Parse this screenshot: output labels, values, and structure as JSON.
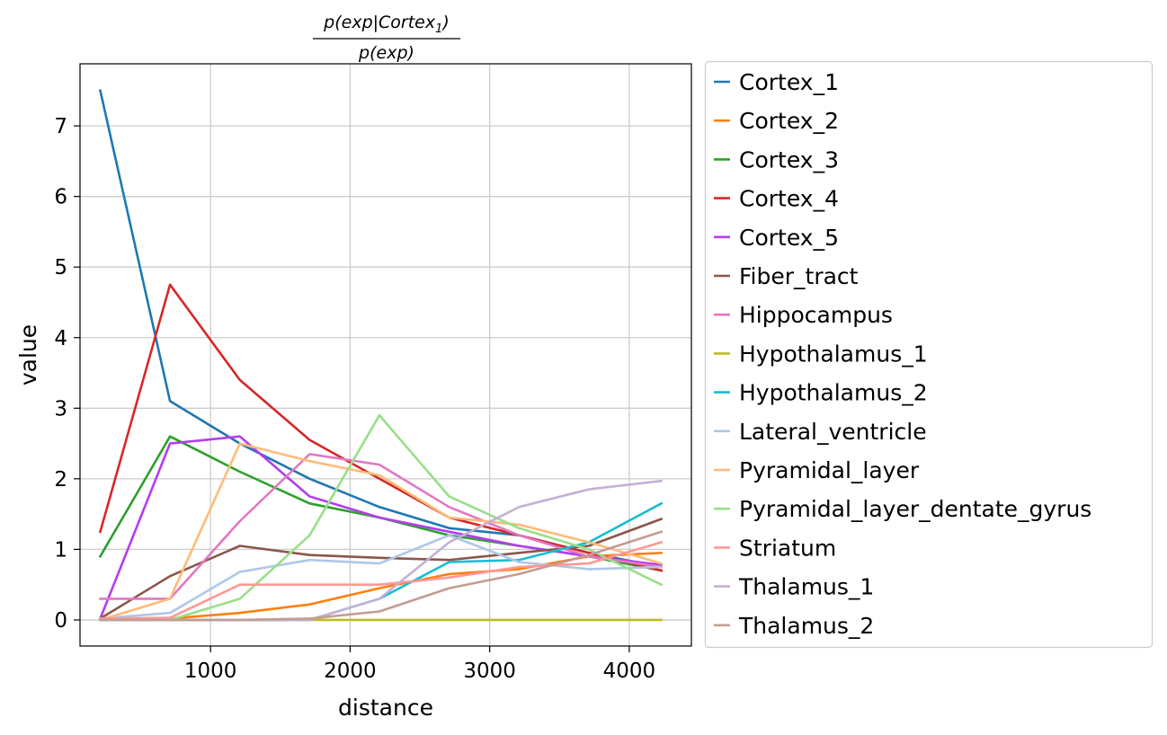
{
  "chart_data": {
    "type": "line",
    "title": {
      "numerator_main": "p(exp|Cortex",
      "numerator_sub": "1",
      "numerator_end": ")",
      "denominator": "p(exp)"
    },
    "xlabel": "distance",
    "ylabel": "value",
    "xlim": [
      65,
      4445
    ],
    "ylim": [
      -0.37,
      7.88
    ],
    "xticks": [
      1000,
      2000,
      3000,
      4000
    ],
    "yticks": [
      0,
      1,
      2,
      3,
      4,
      5,
      6,
      7
    ],
    "grid": true,
    "legend_position": "outside-right",
    "x": [
      210,
      710,
      1210,
      1710,
      2210,
      2710,
      3210,
      3710,
      4230
    ],
    "series": [
      {
        "name": "Cortex_1",
        "color": "#1f77b4",
        "values": [
          7.5,
          3.1,
          2.5,
          2.0,
          1.6,
          1.3,
          1.2,
          0.95,
          0.75
        ]
      },
      {
        "name": "Cortex_2",
        "color": "#ff7f0e",
        "values": [
          0.0,
          0.02,
          0.1,
          0.22,
          0.45,
          0.65,
          0.72,
          0.9,
          0.95
        ]
      },
      {
        "name": "Cortex_3",
        "color": "#2ca02c",
        "values": [
          0.9,
          2.6,
          2.1,
          1.65,
          1.45,
          1.2,
          1.05,
          0.9,
          0.7
        ]
      },
      {
        "name": "Cortex_4",
        "color": "#d62728",
        "values": [
          1.25,
          4.75,
          3.4,
          2.55,
          2.0,
          1.45,
          1.2,
          0.95,
          0.7
        ]
      },
      {
        "name": "Cortex_5",
        "color": "#b43cf0",
        "values": [
          0.02,
          2.5,
          2.6,
          1.75,
          1.45,
          1.25,
          1.05,
          0.9,
          0.78
        ]
      },
      {
        "name": "Fiber_tract",
        "color": "#8c564b",
        "values": [
          0.02,
          0.62,
          1.05,
          0.92,
          0.88,
          0.85,
          0.95,
          1.05,
          1.43
        ]
      },
      {
        "name": "Hippocampus",
        "color": "#e377c2",
        "values": [
          0.3,
          0.3,
          1.4,
          2.35,
          2.2,
          1.6,
          1.2,
          0.9,
          0.75
        ]
      },
      {
        "name": "Hypothalamus_1",
        "color": "#bcbd22",
        "values": [
          0.0,
          0.0,
          0.0,
          0.0,
          0.0,
          0.0,
          0.0,
          0.0,
          0.0
        ]
      },
      {
        "name": "Hypothalamus_2",
        "color": "#17becf",
        "values": [
          0.0,
          0.0,
          0.0,
          0.0,
          0.3,
          0.82,
          0.85,
          1.1,
          1.65
        ]
      },
      {
        "name": "Lateral_ventricle",
        "color": "#aec7e8",
        "values": [
          0.02,
          0.1,
          0.68,
          0.85,
          0.8,
          1.2,
          0.82,
          0.72,
          0.75
        ]
      },
      {
        "name": "Pyramidal_layer",
        "color": "#ffbb78",
        "values": [
          0.0,
          0.3,
          2.5,
          2.25,
          2.05,
          1.45,
          1.35,
          1.1,
          0.8
        ]
      },
      {
        "name": "Pyramidal_layer_dentate_gyrus",
        "color": "#98df8a",
        "values": [
          0.0,
          0.0,
          0.3,
          1.2,
          2.9,
          1.75,
          1.3,
          1.0,
          0.5
        ]
      },
      {
        "name": "Striatum",
        "color": "#ff9896",
        "values": [
          0.02,
          0.03,
          0.5,
          0.5,
          0.5,
          0.6,
          0.75,
          0.8,
          1.1
        ]
      },
      {
        "name": "Thalamus_1",
        "color": "#c5b0d5",
        "values": [
          0.0,
          0.0,
          0.0,
          0.0,
          0.3,
          1.1,
          1.6,
          1.85,
          1.97
        ]
      },
      {
        "name": "Thalamus_2",
        "color": "#c49c94",
        "values": [
          0.0,
          0.0,
          0.0,
          0.02,
          0.12,
          0.45,
          0.65,
          0.92,
          1.25
        ]
      }
    ]
  }
}
